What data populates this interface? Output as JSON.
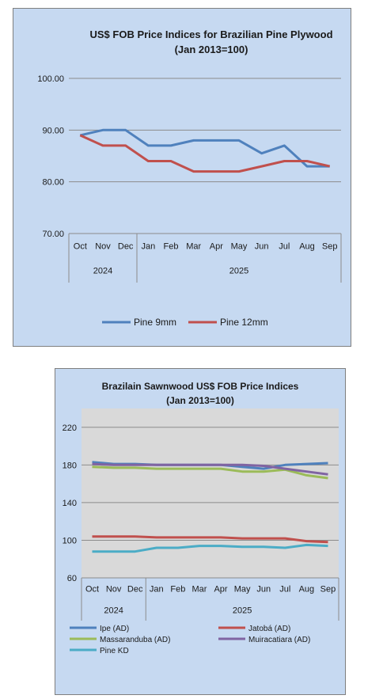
{
  "chart_data": [
    {
      "type": "line",
      "title": "US$ FOB Price Indices for Brazilian  Pine Plywood",
      "subtitle": "(Jan 2013=100)",
      "categories": [
        "Oct",
        "Nov",
        "Dec",
        "Jan",
        "Feb",
        "Mar",
        "Apr",
        "May",
        "Jun",
        "Jul",
        "Aug",
        "Sep"
      ],
      "year_groups": [
        {
          "label": "2024",
          "span": 3
        },
        {
          "label": "2025",
          "span": 9
        }
      ],
      "ylim": [
        70,
        100
      ],
      "yticks": [
        "70.00",
        "80.00",
        "90.00",
        "100.00"
      ],
      "ytick_values": [
        70,
        80,
        90,
        100
      ],
      "grid": true,
      "legend_position": "bottom",
      "series": [
        {
          "name": "Pine 9mm",
          "color": "#4f81bd",
          "values": [
            89,
            90,
            90,
            87,
            87,
            88,
            88,
            88,
            85.5,
            87,
            83,
            83
          ]
        },
        {
          "name": "Pine 12mm",
          "color": "#c0504d",
          "values": [
            89,
            87,
            87,
            84,
            84,
            82,
            82,
            82,
            83,
            84,
            84,
            83
          ]
        }
      ]
    },
    {
      "type": "line",
      "title": "Brazilain Sawnwood US$ FOB Price Indices",
      "subtitle": "(Jan 2013=100)",
      "categories": [
        "Oct",
        "Nov",
        "Dec",
        "Jan",
        "Feb",
        "Mar",
        "Apr",
        "May",
        "Jun",
        "Jul",
        "Aug",
        "Sep"
      ],
      "year_groups": [
        {
          "label": "2024",
          "span": 3
        },
        {
          "label": "2025",
          "span": 9
        }
      ],
      "ylim": [
        60,
        240
      ],
      "yticks": [
        "60",
        "100",
        "140",
        "180",
        "220"
      ],
      "ytick_values": [
        60,
        100,
        140,
        180,
        220
      ],
      "grid": true,
      "legend_position": "bottom",
      "series": [
        {
          "name": "Ipe (AD)",
          "color": "#4f81bd",
          "values": [
            183,
            181,
            181,
            180,
            180,
            180,
            180,
            178,
            176,
            180,
            181,
            182
          ]
        },
        {
          "name": "Jatobá (AD)",
          "color": "#c0504d",
          "values": [
            104,
            104,
            104,
            103,
            103,
            103,
            103,
            102,
            102,
            102,
            99,
            98
          ]
        },
        {
          "name": "Massaranduba (AD)",
          "color": "#9bbb59",
          "values": [
            178,
            177,
            177,
            176,
            176,
            176,
            176,
            173,
            173,
            175,
            169,
            166
          ]
        },
        {
          "name": "Muiracatiara (AD)",
          "color": "#8064a2",
          "values": [
            181,
            180,
            180,
            180,
            180,
            180,
            180,
            180,
            179,
            176,
            173,
            170
          ]
        },
        {
          "name": "Pine KD",
          "color": "#4bacc6",
          "values": [
            88,
            88,
            88,
            92,
            92,
            94,
            94,
            93,
            93,
            92,
            95,
            94
          ]
        }
      ]
    }
  ]
}
